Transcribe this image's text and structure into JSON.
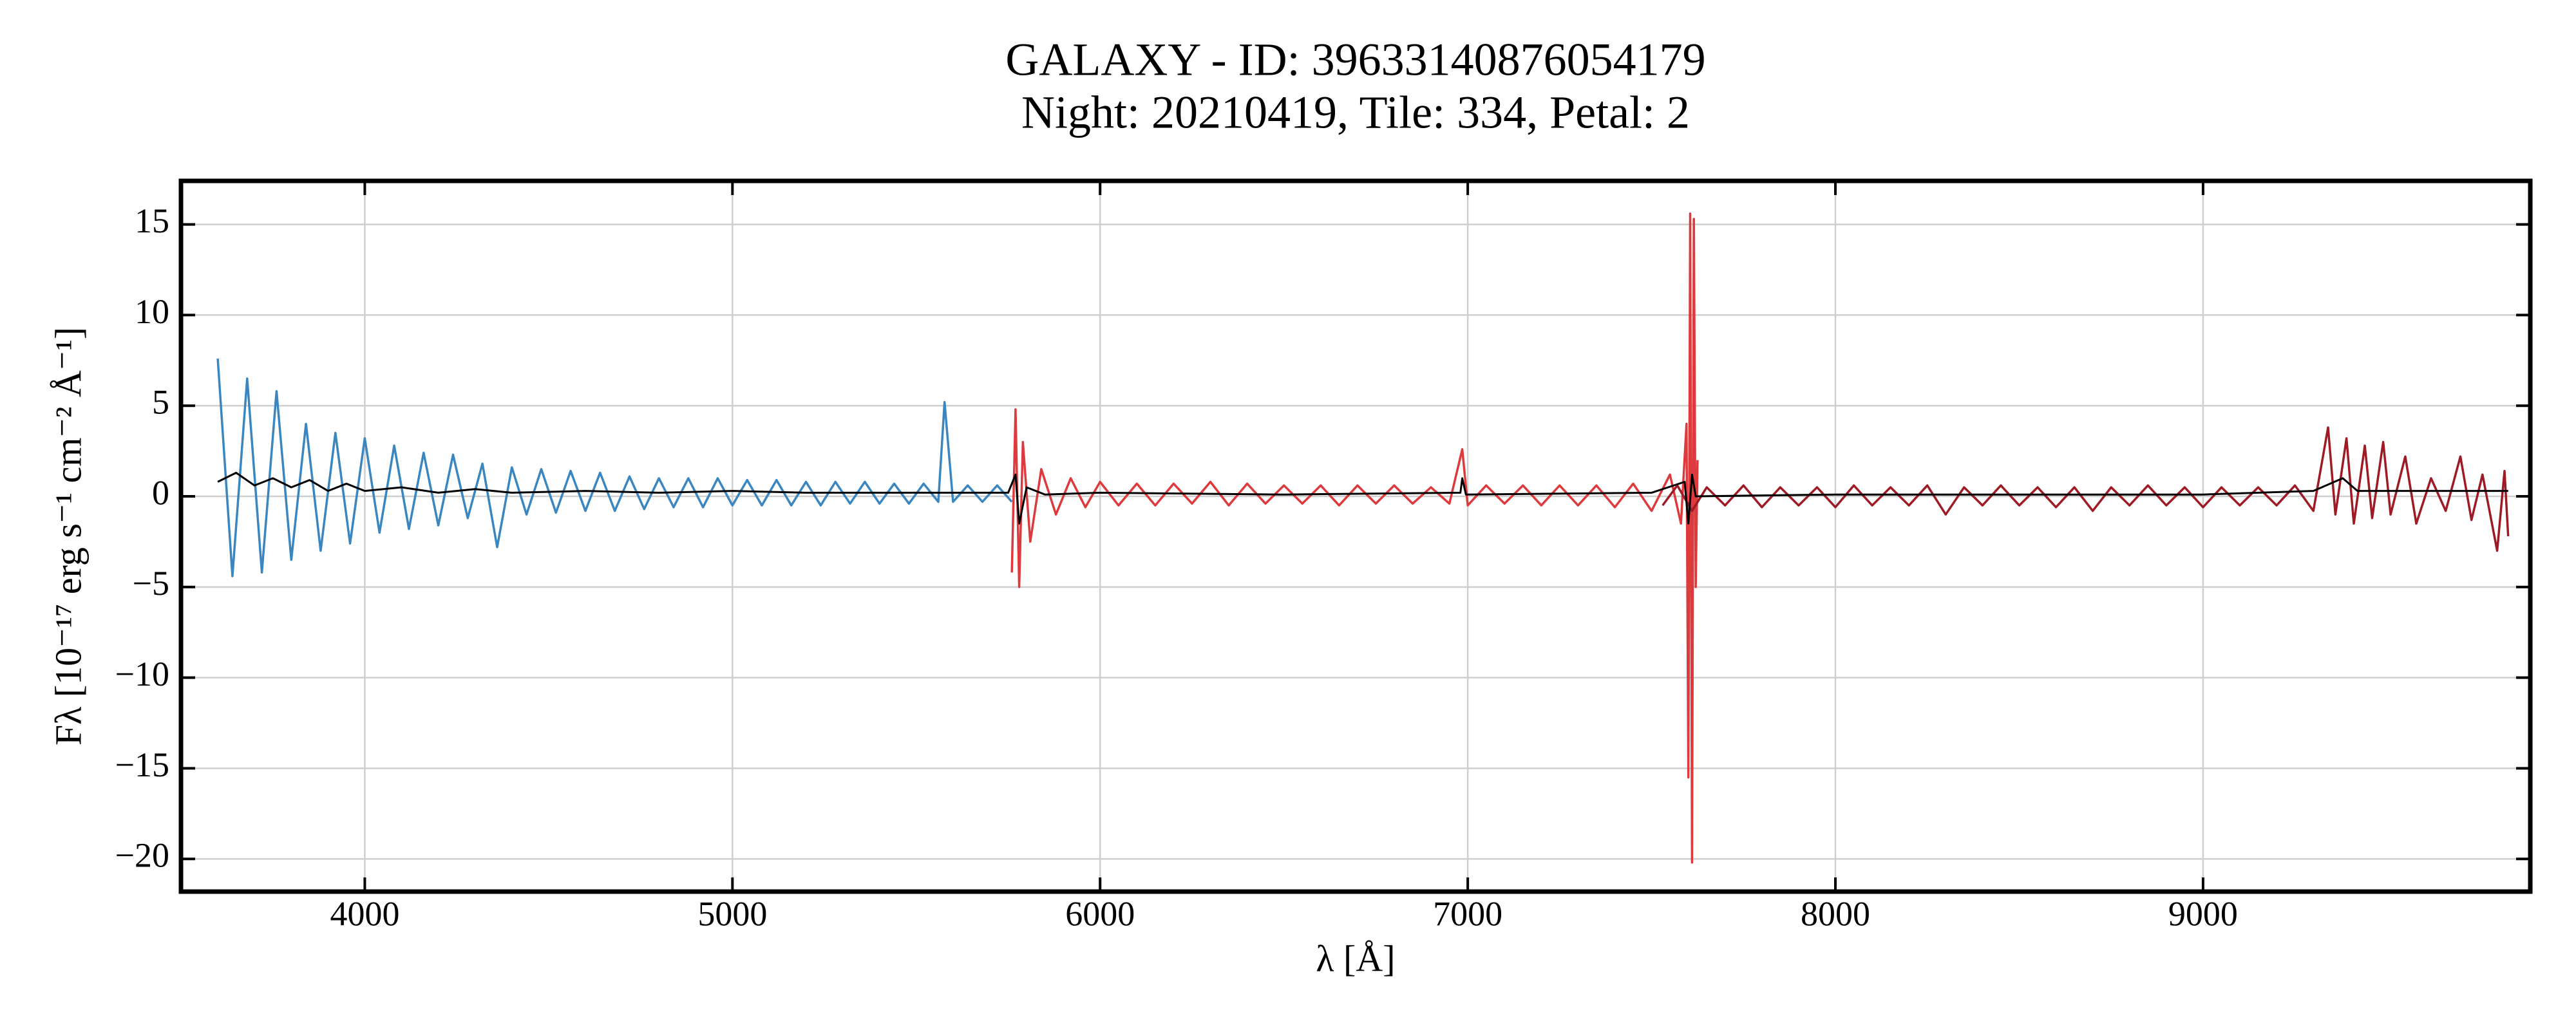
{
  "chart_data": {
    "type": "line",
    "title": "GALAXY - ID: 39633140876054179",
    "subtitle": "Night: 20210419, Tile: 334, Petal: 2",
    "x_label": "λ [Å]",
    "y_label": "Fλ [10⁻¹⁷ erg s⁻¹ cm⁻² Å⁻¹]",
    "xlim": [
      3500,
      9890
    ],
    "ylim": [
      -21.8,
      17.4
    ],
    "xticks": [
      4000,
      5000,
      6000,
      7000,
      8000,
      9000
    ],
    "yticks": [
      {
        "value": -20,
        "label": "−20"
      },
      {
        "value": -15,
        "label": "−15"
      },
      {
        "value": -10,
        "label": "−10"
      },
      {
        "value": -5,
        "label": "−5"
      },
      0,
      5,
      10,
      15
    ],
    "grid": true,
    "series": [
      {
        "color": "#3a86c0",
        "x": [
          3600,
          3640,
          3680,
          3720,
          3760,
          3800,
          3840,
          3880,
          3920,
          3960,
          4000,
          4040,
          4080,
          4120,
          4160,
          4200,
          4240,
          4280,
          4320,
          4360,
          4400,
          4440,
          4480,
          4520,
          4560,
          4600,
          4640,
          4680,
          4720,
          4760,
          4800,
          4840,
          4880,
          4920,
          4960,
          5000,
          5040,
          5080,
          5120,
          5160,
          5200,
          5240,
          5280,
          5320,
          5360,
          5400,
          5440,
          5480,
          5520,
          5560,
          5577,
          5600,
          5640,
          5680,
          5720,
          5760
        ],
        "values": [
          7.6,
          -4.4,
          6.5,
          -4.2,
          5.8,
          -3.5,
          4.0,
          -3.0,
          3.5,
          -2.6,
          3.2,
          -2.0,
          2.8,
          -1.8,
          2.4,
          -1.6,
          2.3,
          -1.2,
          1.8,
          -2.8,
          1.6,
          -1.0,
          1.5,
          -0.9,
          1.4,
          -0.8,
          1.3,
          -0.8,
          1.1,
          -0.7,
          1.0,
          -0.6,
          1.0,
          -0.6,
          1.0,
          -0.5,
          0.9,
          -0.5,
          0.9,
          -0.5,
          0.8,
          -0.5,
          0.8,
          -0.4,
          0.8,
          -0.4,
          0.7,
          -0.4,
          0.7,
          -0.3,
          5.2,
          -0.3,
          0.6,
          -0.3,
          0.6,
          -0.3
        ]
      },
      {
        "color": "#dc3a3c",
        "x": [
          5760,
          5770,
          5780,
          5790,
          5810,
          5840,
          5880,
          5920,
          5960,
          6000,
          6050,
          6100,
          6150,
          6200,
          6250,
          6300,
          6350,
          6400,
          6450,
          6500,
          6550,
          6600,
          6650,
          6700,
          6750,
          6800,
          6850,
          6900,
          6950,
          6985,
          7000,
          7050,
          7100,
          7150,
          7200,
          7250,
          7300,
          7350,
          7400,
          7450,
          7500,
          7550,
          7580,
          7595,
          7600,
          7605,
          7610,
          7615,
          7620,
          7625
        ],
        "values": [
          -4.2,
          4.8,
          -5.0,
          3.0,
          -2.5,
          1.5,
          -1.0,
          1.0,
          -0.6,
          0.8,
          -0.5,
          0.7,
          -0.5,
          0.7,
          -0.4,
          0.8,
          -0.5,
          0.7,
          -0.4,
          0.6,
          -0.4,
          0.6,
          -0.5,
          0.6,
          -0.4,
          0.6,
          -0.4,
          0.5,
          -0.4,
          2.6,
          -0.5,
          0.6,
          -0.4,
          0.6,
          -0.5,
          0.6,
          -0.5,
          0.6,
          -0.6,
          0.7,
          -0.8,
          1.2,
          -1.5,
          4.0,
          -15.5,
          15.6,
          -20.2,
          15.3,
          -5.0,
          2.0
        ]
      },
      {
        "color": "#9e1b25",
        "x": [
          7530,
          7570,
          7610,
          7650,
          7700,
          7750,
          7800,
          7850,
          7900,
          7950,
          8000,
          8050,
          8100,
          8150,
          8200,
          8250,
          8300,
          8350,
          8400,
          8450,
          8500,
          8550,
          8600,
          8650,
          8700,
          8750,
          8800,
          8850,
          8900,
          8950,
          9000,
          9050,
          9100,
          9150,
          9200,
          9250,
          9300,
          9340,
          9360,
          9390,
          9410,
          9440,
          9460,
          9490,
          9510,
          9550,
          9580,
          9620,
          9660,
          9700,
          9730,
          9760,
          9800,
          9820,
          9830
        ],
        "values": [
          -0.5,
          0.6,
          -0.8,
          0.5,
          -0.5,
          0.6,
          -0.6,
          0.5,
          -0.5,
          0.5,
          -0.6,
          0.6,
          -0.5,
          0.5,
          -0.5,
          0.6,
          -1.0,
          0.5,
          -0.5,
          0.6,
          -0.5,
          0.5,
          -0.6,
          0.5,
          -0.8,
          0.5,
          -0.5,
          0.6,
          -0.5,
          0.5,
          -0.6,
          0.5,
          -0.5,
          0.5,
          -0.5,
          0.6,
          -0.8,
          3.8,
          -1.0,
          3.2,
          -1.5,
          2.8,
          -1.2,
          3.0,
          -1.0,
          2.2,
          -1.5,
          1.0,
          -0.8,
          2.2,
          -1.3,
          1.2,
          -3.0,
          1.4,
          -2.2
        ]
      },
      {
        "color": "#000000",
        "x": [
          3600,
          3650,
          3700,
          3750,
          3800,
          3850,
          3900,
          3950,
          4000,
          4100,
          4200,
          4300,
          4400,
          4600,
          4800,
          5000,
          5200,
          5400,
          5600,
          5750,
          5770,
          5780,
          5800,
          5850,
          6000,
          6500,
          6980,
          6985,
          6995,
          7500,
          7590,
          7600,
          7610,
          7620,
          8000,
          8500,
          9000,
          9300,
          9380,
          9420,
          9830
        ],
        "values": [
          0.8,
          1.3,
          0.6,
          1.0,
          0.5,
          0.9,
          0.3,
          0.7,
          0.3,
          0.5,
          0.2,
          0.4,
          0.2,
          0.3,
          0.2,
          0.3,
          0.2,
          0.2,
          0.2,
          0.2,
          1.2,
          -1.5,
          0.5,
          0.1,
          0.2,
          0.1,
          0.2,
          1.0,
          0.1,
          0.2,
          0.8,
          -1.5,
          1.2,
          0.0,
          0.1,
          0.1,
          0.1,
          0.3,
          1.0,
          0.3,
          0.3
        ]
      }
    ]
  }
}
